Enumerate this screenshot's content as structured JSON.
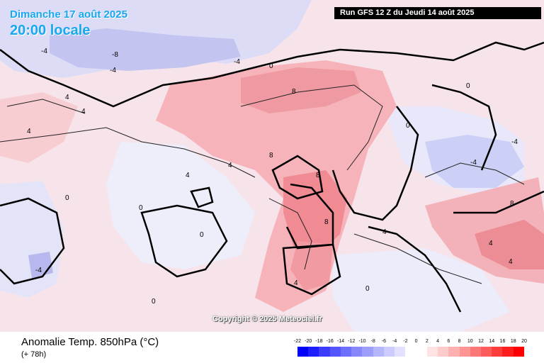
{
  "header": {
    "date": "Dimanche 17 août 2025",
    "local_time": "20:00 locale",
    "run": "Run GFS 12 Z du Jeudi 14 août 2025"
  },
  "footer": {
    "parameter": "Anomalie Temp. 850hPa (°C)",
    "lead_time": "(+ 78h)",
    "copyright": "Copyright © 2025 Meteociel.fr"
  },
  "legend": {
    "labels": [
      "-22",
      "-20",
      "-18",
      "-16",
      "-14",
      "-12",
      "-10",
      "-8",
      "-6",
      "-4",
      "-2",
      "0",
      "2",
      "4",
      "6",
      "8",
      "10",
      "12",
      "14",
      "16",
      "18",
      "20"
    ],
    "colors": [
      "#0000ff",
      "#1e1eff",
      "#3c3cff",
      "#5555ff",
      "#6e6eff",
      "#8686ff",
      "#9e9eff",
      "#b6b6ff",
      "#ccccff",
      "#e2e2ff",
      "#ffffff",
      "#ffffff",
      "#ffe2e2",
      "#ffcccc",
      "#ffb0b0",
      "#ff9494",
      "#ff7878",
      "#ff5c5c",
      "#ff3c3c",
      "#ff1e1e",
      "#ff0000"
    ]
  },
  "map_labels": [
    "-8",
    "-4",
    "-4",
    "-4",
    "0",
    "4",
    "4",
    "4",
    "4",
    "8",
    "8",
    "8",
    "8",
    "0",
    "0",
    "0",
    "0",
    "4",
    "4",
    "4",
    "8",
    "0",
    "-4",
    "-4",
    "-4",
    "4",
    "0",
    "4",
    "0"
  ]
}
